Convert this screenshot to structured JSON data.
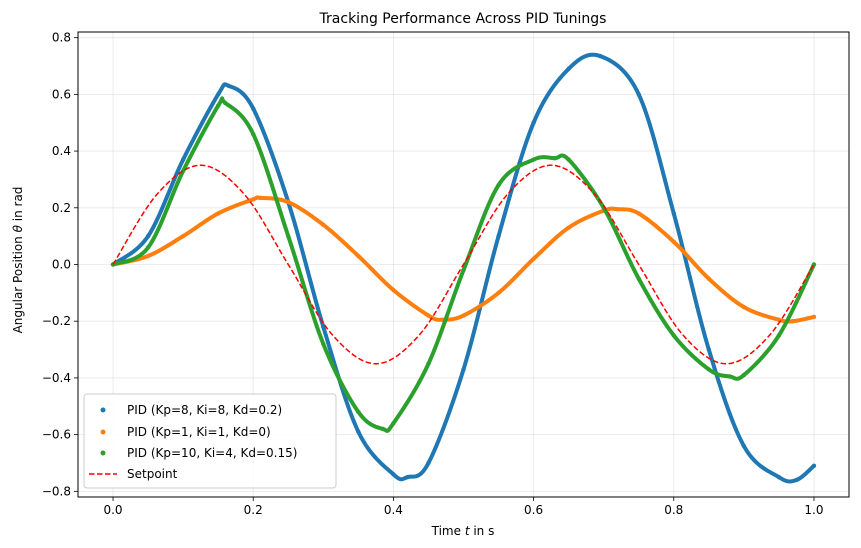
{
  "chart_data": {
    "type": "line",
    "title": "Tracking Performance Across PID Tunings",
    "xlabel_prefix": "Time ",
    "xlabel_var": "t",
    "xlabel_suffix": " in s",
    "ylabel_prefix": "Angular Position ",
    "ylabel_var": "θ",
    "ylabel_suffix": " in rad",
    "xlim": [
      -0.05,
      1.05
    ],
    "ylim": [
      -0.82,
      0.82
    ],
    "xticks": [
      0.0,
      0.2,
      0.4,
      0.6,
      0.8,
      1.0
    ],
    "xtick_labels": [
      "0.0",
      "0.2",
      "0.4",
      "0.6",
      "0.8",
      "1.0"
    ],
    "yticks": [
      -0.8,
      -0.6,
      -0.4,
      -0.2,
      0.0,
      0.2,
      0.4,
      0.6,
      0.8
    ],
    "ytick_labels": [
      "−0.8",
      "−0.6",
      "−0.4",
      "−0.2",
      "0.0",
      "0.2",
      "0.4",
      "0.6",
      "0.8"
    ],
    "grid": true,
    "legend_position": "lower-left",
    "series": [
      {
        "name": "PID (Kp=8, Ki=8, Kd=0.2)",
        "style": "scatter",
        "color": "#1f77b4",
        "x": [
          0.0,
          0.05,
          0.1,
          0.15,
          0.165,
          0.2,
          0.25,
          0.3,
          0.35,
          0.4,
          0.42,
          0.45,
          0.5,
          0.55,
          0.6,
          0.65,
          0.695,
          0.75,
          0.8,
          0.85,
          0.9,
          0.95,
          0.975,
          1.0
        ],
        "y": [
          0.0,
          0.1,
          0.37,
          0.6,
          0.63,
          0.55,
          0.22,
          -0.22,
          -0.59,
          -0.74,
          -0.75,
          -0.7,
          -0.37,
          0.1,
          0.5,
          0.69,
          0.735,
          0.6,
          0.18,
          -0.3,
          -0.64,
          -0.75,
          -0.76,
          -0.71
        ]
      },
      {
        "name": "PID (Kp=1, Ki=1, Kd=0)",
        "style": "scatter",
        "color": "#ff7f0e",
        "x": [
          0.0,
          0.05,
          0.1,
          0.15,
          0.2,
          0.21,
          0.25,
          0.3,
          0.35,
          0.4,
          0.45,
          0.47,
          0.5,
          0.55,
          0.6,
          0.65,
          0.7,
          0.72,
          0.75,
          0.8,
          0.85,
          0.9,
          0.95,
          0.97,
          1.0
        ],
        "y": [
          0.0,
          0.03,
          0.1,
          0.18,
          0.23,
          0.235,
          0.22,
          0.14,
          0.03,
          -0.09,
          -0.18,
          -0.195,
          -0.18,
          -0.1,
          0.02,
          0.13,
          0.19,
          0.195,
          0.18,
          0.08,
          -0.05,
          -0.15,
          -0.195,
          -0.2,
          -0.185
        ]
      },
      {
        "name": "PID (Kp=10, Ki=4, Kd=0.15)",
        "style": "scatter",
        "color": "#2ca02c",
        "x": [
          0.0,
          0.05,
          0.1,
          0.15,
          0.16,
          0.2,
          0.25,
          0.3,
          0.35,
          0.385,
          0.4,
          0.45,
          0.5,
          0.55,
          0.6,
          0.63,
          0.65,
          0.7,
          0.75,
          0.8,
          0.85,
          0.88,
          0.9,
          0.95,
          1.0
        ],
        "y": [
          0.0,
          0.06,
          0.33,
          0.56,
          0.57,
          0.46,
          0.1,
          -0.28,
          -0.52,
          -0.58,
          -0.56,
          -0.35,
          -0.02,
          0.28,
          0.37,
          0.375,
          0.37,
          0.2,
          -0.05,
          -0.25,
          -0.37,
          -0.395,
          -0.39,
          -0.25,
          0.0
        ]
      },
      {
        "name": "Setpoint",
        "style": "dashed",
        "color": "#ff0000",
        "x": [
          0.0,
          0.0625,
          0.125,
          0.1875,
          0.25,
          0.3125,
          0.375,
          0.4375,
          0.5,
          0.5625,
          0.625,
          0.6875,
          0.75,
          0.8125,
          0.875,
          0.9375,
          1.0
        ],
        "y": [
          0.0,
          0.247,
          0.35,
          0.247,
          0.0,
          -0.247,
          -0.35,
          -0.247,
          0.0,
          0.247,
          0.35,
          0.247,
          0.0,
          -0.247,
          -0.35,
          -0.247,
          0.0
        ]
      }
    ]
  }
}
